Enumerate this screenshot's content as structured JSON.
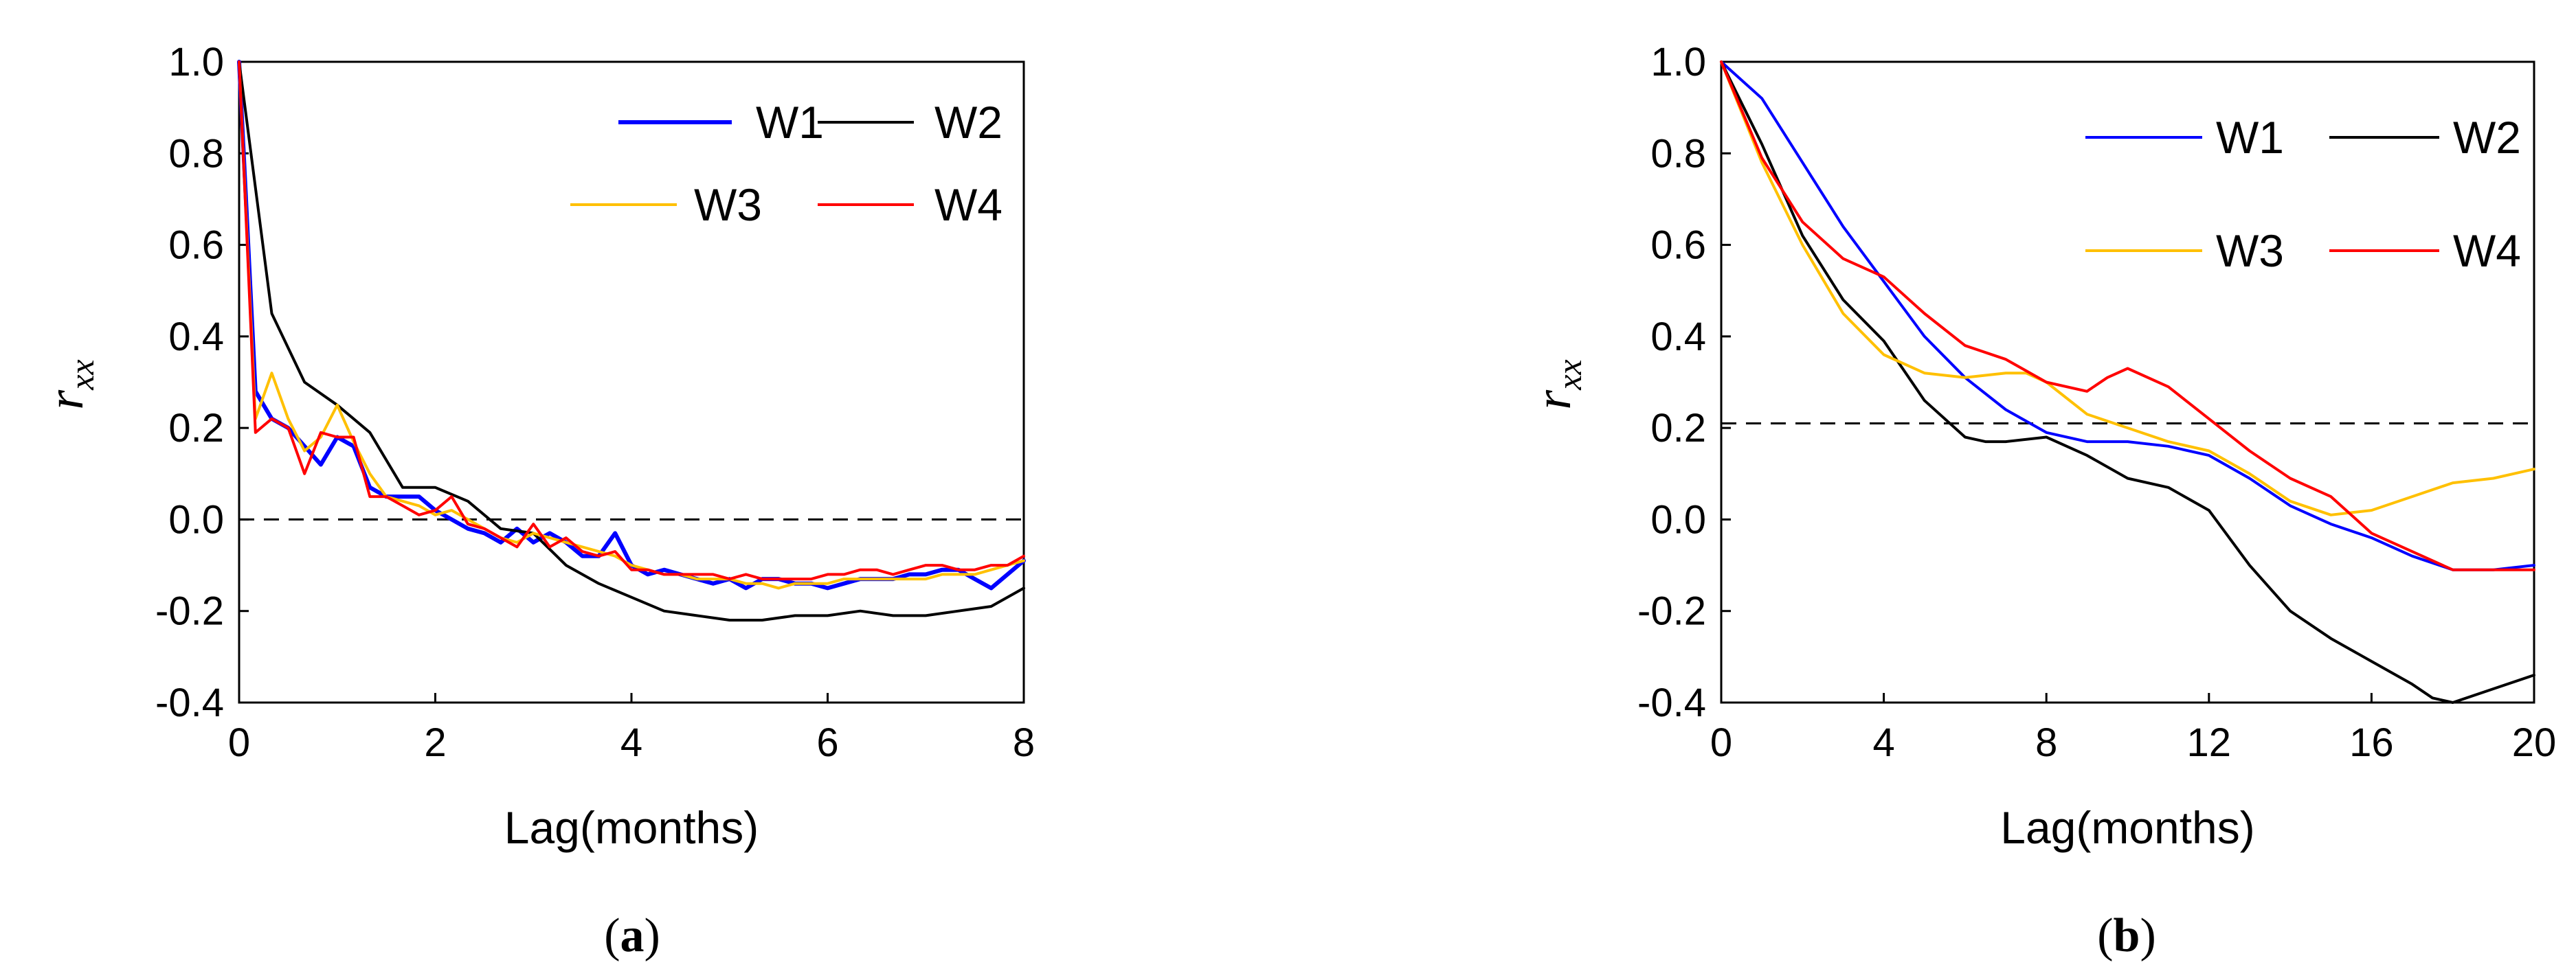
{
  "chart_data": [
    {
      "type": "line",
      "caption": {
        "open": "(",
        "letter": "a",
        "close": ")"
      },
      "xlabel": "Lag(months)",
      "ylabel": {
        "main": "r",
        "sub": "xx"
      },
      "xlim": [
        0,
        8
      ],
      "ylim": [
        -0.4,
        1.0
      ],
      "xticks": [
        "0",
        "2",
        "4",
        "6",
        "8"
      ],
      "yticks": [
        "1.0",
        "0.8",
        "0.6",
        "0.4",
        "0.2",
        "0.0",
        "-0.2",
        "-0.4"
      ],
      "reference_line": {
        "y": 0.0,
        "style": "dashed"
      },
      "legend_placement": "top-right",
      "legend_columns": 2,
      "series": [
        {
          "name": "W1",
          "color": "#0000ff",
          "width": 3,
          "x": [
            0,
            0.167,
            0.333,
            0.5,
            0.667,
            0.833,
            1,
            1.167,
            1.333,
            1.5,
            1.667,
            1.833,
            2,
            2.167,
            2.333,
            2.5,
            2.667,
            2.833,
            3,
            3.167,
            3.333,
            3.5,
            3.667,
            3.833,
            4,
            4.167,
            4.333,
            4.5,
            4.667,
            4.833,
            5,
            5.167,
            5.333,
            5.5,
            5.667,
            5.833,
            6,
            6.167,
            6.333,
            6.5,
            6.667,
            6.833,
            7,
            7.167,
            7.333,
            7.5,
            7.667,
            7.833,
            8
          ],
          "y": [
            1.0,
            0.28,
            0.22,
            0.2,
            0.16,
            0.12,
            0.18,
            0.16,
            0.07,
            0.05,
            0.05,
            0.05,
            0.02,
            0.0,
            -0.02,
            -0.03,
            -0.05,
            -0.02,
            -0.05,
            -0.03,
            -0.05,
            -0.08,
            -0.08,
            -0.03,
            -0.1,
            -0.12,
            -0.11,
            -0.12,
            -0.13,
            -0.14,
            -0.13,
            -0.15,
            -0.13,
            -0.13,
            -0.14,
            -0.14,
            -0.15,
            -0.14,
            -0.13,
            -0.13,
            -0.13,
            -0.12,
            -0.12,
            -0.11,
            -0.11,
            -0.13,
            -0.15,
            -0.12,
            -0.09
          ]
        },
        {
          "name": "W2",
          "color": "#000000",
          "width": 2,
          "x": [
            0,
            0.333,
            0.667,
            1,
            1.333,
            1.667,
            2,
            2.333,
            2.667,
            3,
            3.333,
            3.667,
            4,
            4.333,
            4.667,
            5,
            5.333,
            5.667,
            6,
            6.333,
            6.667,
            7,
            7.333,
            7.667,
            8
          ],
          "y": [
            1.0,
            0.45,
            0.3,
            0.25,
            0.19,
            0.07,
            0.07,
            0.04,
            -0.02,
            -0.03,
            -0.1,
            -0.14,
            -0.17,
            -0.2,
            -0.21,
            -0.22,
            -0.22,
            -0.21,
            -0.21,
            -0.2,
            -0.21,
            -0.21,
            -0.2,
            -0.19,
            -0.15
          ]
        },
        {
          "name": "W3",
          "color": "#ffc000",
          "width": 2,
          "x": [
            0,
            0.167,
            0.333,
            0.5,
            0.667,
            0.833,
            1,
            1.167,
            1.333,
            1.5,
            1.667,
            1.833,
            2,
            2.167,
            2.333,
            2.5,
            2.667,
            2.833,
            3,
            3.167,
            3.333,
            3.5,
            3.667,
            3.833,
            4,
            4.167,
            4.333,
            4.5,
            4.667,
            4.833,
            5,
            5.167,
            5.333,
            5.5,
            5.667,
            5.833,
            6,
            6.167,
            6.333,
            6.5,
            6.667,
            6.833,
            7,
            7.167,
            7.333,
            7.5,
            7.667,
            7.833,
            8
          ],
          "y": [
            1.0,
            0.22,
            0.32,
            0.22,
            0.15,
            0.18,
            0.25,
            0.17,
            0.1,
            0.05,
            0.04,
            0.03,
            0.01,
            0.02,
            0.0,
            -0.02,
            -0.04,
            -0.05,
            -0.03,
            -0.04,
            -0.05,
            -0.06,
            -0.07,
            -0.08,
            -0.1,
            -0.11,
            -0.12,
            -0.12,
            -0.13,
            -0.13,
            -0.13,
            -0.14,
            -0.14,
            -0.15,
            -0.14,
            -0.14,
            -0.14,
            -0.13,
            -0.13,
            -0.13,
            -0.13,
            -0.13,
            -0.13,
            -0.12,
            -0.12,
            -0.12,
            -0.11,
            -0.1,
            -0.09
          ]
        },
        {
          "name": "W4",
          "color": "#ff0000",
          "width": 2,
          "x": [
            0,
            0.167,
            0.333,
            0.5,
            0.667,
            0.833,
            1,
            1.167,
            1.333,
            1.5,
            1.667,
            1.833,
            2,
            2.167,
            2.333,
            2.5,
            2.667,
            2.833,
            3,
            3.167,
            3.333,
            3.5,
            3.667,
            3.833,
            4,
            4.167,
            4.333,
            4.5,
            4.667,
            4.833,
            5,
            5.167,
            5.333,
            5.5,
            5.667,
            5.833,
            6,
            6.167,
            6.333,
            6.5,
            6.667,
            6.833,
            7,
            7.167,
            7.333,
            7.5,
            7.667,
            7.833,
            8
          ],
          "y": [
            1.0,
            0.19,
            0.22,
            0.2,
            0.1,
            0.19,
            0.18,
            0.18,
            0.05,
            0.05,
            0.03,
            0.01,
            0.02,
            0.05,
            -0.01,
            -0.02,
            -0.04,
            -0.06,
            -0.01,
            -0.06,
            -0.04,
            -0.07,
            -0.08,
            -0.07,
            -0.11,
            -0.11,
            -0.12,
            -0.12,
            -0.12,
            -0.12,
            -0.13,
            -0.12,
            -0.13,
            -0.13,
            -0.13,
            -0.13,
            -0.12,
            -0.12,
            -0.11,
            -0.11,
            -0.12,
            -0.11,
            -0.1,
            -0.1,
            -0.11,
            -0.11,
            -0.1,
            -0.1,
            -0.08
          ]
        }
      ]
    },
    {
      "type": "line",
      "caption": {
        "open": "(",
        "letter": "b",
        "close": ")"
      },
      "xlabel": "Lag(months)",
      "ylabel": {
        "main": "r",
        "sub": "xx"
      },
      "xlim": [
        0,
        20
      ],
      "ylim": [
        -0.4,
        1.0
      ],
      "xticks": [
        "0",
        "4",
        "8",
        "12",
        "16",
        "20"
      ],
      "yticks": [
        "1.0",
        "0.8",
        "0.6",
        "0.4",
        "0.2",
        "0.0",
        "-0.2",
        "-0.4"
      ],
      "reference_line": {
        "y": 0.21,
        "style": "dashed"
      },
      "legend_placement": "top-right",
      "legend_columns": 2,
      "series": [
        {
          "name": "W1",
          "color": "#0000ff",
          "width": 2,
          "x": [
            0,
            1,
            2,
            3,
            4,
            5,
            6,
            7,
            8,
            9,
            10,
            11,
            12,
            13,
            14,
            15,
            16,
            17,
            18,
            19,
            20
          ],
          "y": [
            1.0,
            0.92,
            0.78,
            0.64,
            0.52,
            0.4,
            0.31,
            0.24,
            0.19,
            0.17,
            0.17,
            0.16,
            0.14,
            0.09,
            0.03,
            -0.01,
            -0.04,
            -0.08,
            -0.11,
            -0.11,
            -0.1
          ]
        },
        {
          "name": "W2",
          "color": "#000000",
          "width": 2,
          "x": [
            0,
            1,
            2,
            3,
            4,
            5,
            6,
            6.5,
            7,
            8,
            9,
            10,
            11,
            12,
            13,
            14,
            15,
            16,
            17,
            17.5,
            18,
            19,
            20
          ],
          "y": [
            1.0,
            0.82,
            0.62,
            0.48,
            0.39,
            0.26,
            0.18,
            0.17,
            0.17,
            0.18,
            0.14,
            0.09,
            0.07,
            0.02,
            -0.1,
            -0.2,
            -0.26,
            -0.31,
            -0.36,
            -0.39,
            -0.4,
            -0.37,
            -0.34
          ]
        },
        {
          "name": "W3",
          "color": "#ffc000",
          "width": 2,
          "x": [
            0,
            1,
            2,
            3,
            4,
            5,
            6,
            7,
            7.5,
            8,
            9,
            10,
            11,
            12,
            13,
            14,
            15,
            16,
            17,
            18,
            19,
            20
          ],
          "y": [
            1.0,
            0.78,
            0.6,
            0.45,
            0.36,
            0.32,
            0.31,
            0.32,
            0.32,
            0.3,
            0.23,
            0.2,
            0.17,
            0.15,
            0.1,
            0.04,
            0.01,
            0.02,
            0.05,
            0.08,
            0.09,
            0.11
          ]
        },
        {
          "name": "W4",
          "color": "#ff0000",
          "width": 2,
          "x": [
            0,
            1,
            2,
            3,
            4,
            5,
            6,
            7,
            8,
            9,
            9.5,
            10,
            11,
            12,
            13,
            14,
            15,
            16,
            17,
            18,
            19,
            20
          ],
          "y": [
            1.0,
            0.79,
            0.65,
            0.57,
            0.53,
            0.45,
            0.38,
            0.35,
            0.3,
            0.28,
            0.31,
            0.33,
            0.29,
            0.22,
            0.15,
            0.09,
            0.05,
            -0.03,
            -0.07,
            -0.11,
            -0.11,
            -0.11
          ]
        }
      ]
    }
  ]
}
